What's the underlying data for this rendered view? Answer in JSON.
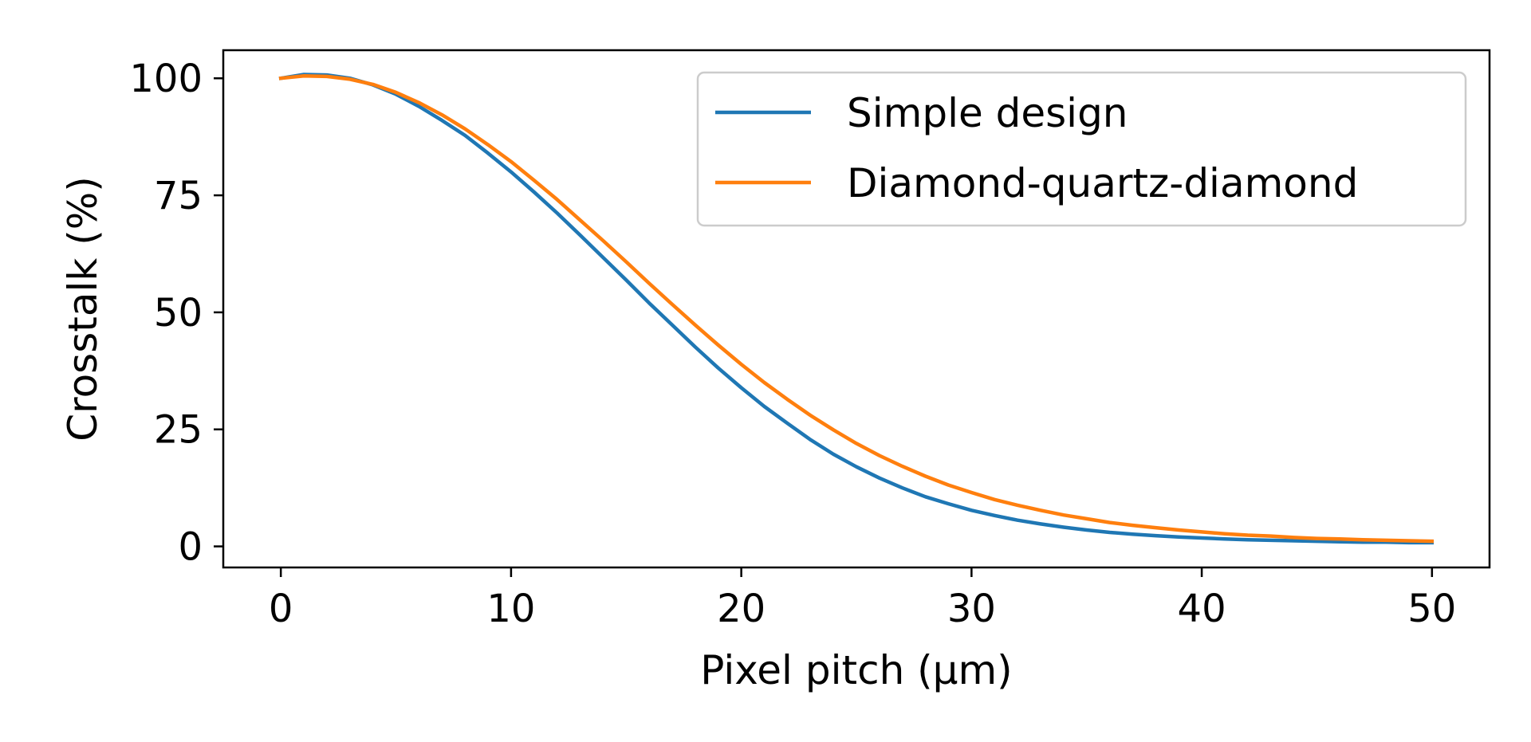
{
  "chart_data": {
    "type": "line",
    "xlabel": "Pixel pitch (μm)",
    "ylabel": "Crosstalk (%)",
    "xlim": [
      -2.5,
      52.5
    ],
    "ylim": [
      -4.5,
      106
    ],
    "xticks": [
      0,
      10,
      20,
      30,
      40,
      50
    ],
    "yticks": [
      0,
      25,
      50,
      75,
      100
    ],
    "grid": false,
    "legend_position": "top-right",
    "series": [
      {
        "name": "Simple design",
        "color": "#1f77b4",
        "x": [
          0,
          1,
          2,
          3,
          4,
          5,
          6,
          7,
          8,
          9,
          10,
          11,
          12,
          13,
          14,
          15,
          16,
          17,
          18,
          19,
          20,
          21,
          22,
          23,
          24,
          25,
          26,
          27,
          28,
          29,
          30,
          31,
          32,
          33,
          34,
          35,
          36,
          37,
          38,
          39,
          40,
          41,
          42,
          43,
          44,
          45,
          46,
          47,
          48,
          49,
          50
        ],
        "values": [
          100.0,
          100.8,
          100.7,
          100.0,
          98.6,
          96.6,
          94.0,
          91.0,
          87.8,
          84.0,
          80.0,
          75.7,
          71.2,
          66.5,
          61.7,
          56.9,
          52.0,
          47.3,
          42.6,
          38.1,
          33.9,
          29.9,
          26.3,
          22.8,
          19.7,
          17.0,
          14.6,
          12.5,
          10.6,
          9.1,
          7.7,
          6.6,
          5.6,
          4.8,
          4.1,
          3.5,
          3.0,
          2.6,
          2.3,
          2.0,
          1.8,
          1.6,
          1.4,
          1.3,
          1.2,
          1.1,
          1.0,
          0.9,
          0.9,
          0.8,
          0.8
        ]
      },
      {
        "name": "Diamond-quartz-diamond",
        "color": "#ff7f0e",
        "x": [
          0,
          1,
          2,
          3,
          4,
          5,
          6,
          7,
          8,
          9,
          10,
          11,
          12,
          13,
          14,
          15,
          16,
          17,
          18,
          19,
          20,
          21,
          22,
          23,
          24,
          25,
          26,
          27,
          28,
          29,
          30,
          31,
          32,
          33,
          34,
          35,
          36,
          37,
          38,
          39,
          40,
          41,
          42,
          43,
          44,
          45,
          46,
          47,
          48,
          49,
          50
        ],
        "values": [
          100.0,
          100.5,
          100.4,
          99.8,
          98.7,
          97.0,
          94.8,
          92.2,
          89.2,
          85.8,
          82.2,
          78.2,
          74.1,
          69.7,
          65.3,
          60.8,
          56.2,
          51.7,
          47.3,
          43.0,
          38.9,
          35.0,
          31.4,
          28.0,
          24.9,
          22.0,
          19.4,
          17.1,
          15.0,
          13.1,
          11.5,
          10.0,
          8.8,
          7.7,
          6.7,
          5.9,
          5.1,
          4.5,
          4.0,
          3.5,
          3.1,
          2.7,
          2.4,
          2.2,
          1.9,
          1.7,
          1.6,
          1.4,
          1.3,
          1.2,
          1.1
        ]
      }
    ]
  }
}
